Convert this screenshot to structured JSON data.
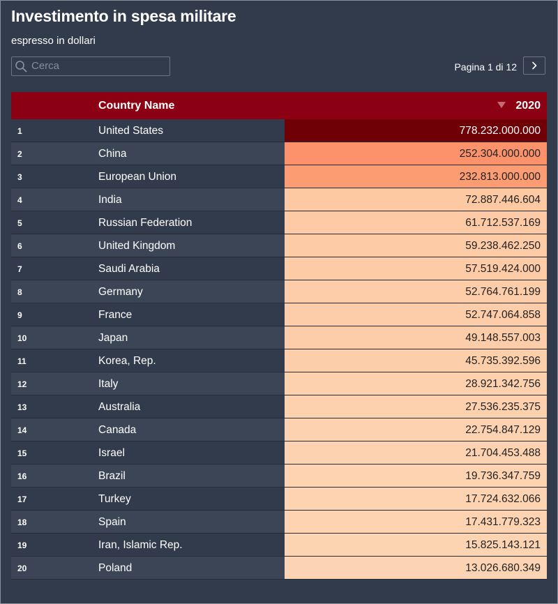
{
  "header": {
    "title": "Investimento in spesa militare",
    "subtitle": "espresso in dollari"
  },
  "search": {
    "placeholder": "Cerca",
    "value": ""
  },
  "pagination": {
    "label": "Pagina 1 di 12",
    "next_icon": "chevron-right-icon"
  },
  "table": {
    "columns": {
      "rank": "",
      "country": "Country Name",
      "value": "2020"
    },
    "sort_icon": "sort-desc-icon",
    "rows": [
      {
        "rank": "1",
        "country": "United States",
        "value": "778.232.000.000",
        "color": "#6e0006"
      },
      {
        "rank": "2",
        "country": "China",
        "value": "252.304.000.000",
        "color": "#fc926b"
      },
      {
        "rank": "3",
        "country": "European Union",
        "value": "232.813.000.000",
        "color": "#fc9c73"
      },
      {
        "rank": "4",
        "country": "India",
        "value": "72.887.446.604",
        "color": "#fdc9a2"
      },
      {
        "rank": "5",
        "country": "Russian Federation",
        "value": "61.712.537.169",
        "color": "#fdcaa5"
      },
      {
        "rank": "6",
        "country": "United Kingdom",
        "value": "59.238.462.250",
        "color": "#fdcba6"
      },
      {
        "rank": "7",
        "country": "Saudi Arabia",
        "value": "57.519.424.000",
        "color": "#fdcba6"
      },
      {
        "rank": "8",
        "country": "Germany",
        "value": "52.764.761.199",
        "color": "#fdcca8"
      },
      {
        "rank": "9",
        "country": "France",
        "value": "52.747.064.858",
        "color": "#fdcca8"
      },
      {
        "rank": "10",
        "country": "Japan",
        "value": "49.148.557.003",
        "color": "#fdcda9"
      },
      {
        "rank": "11",
        "country": "Korea, Rep.",
        "value": "45.735.392.596",
        "color": "#fdceaa"
      },
      {
        "rank": "12",
        "country": "Italy",
        "value": "28.921.342.756",
        "color": "#fdd1ae"
      },
      {
        "rank": "13",
        "country": "Australia",
        "value": "27.536.235.375",
        "color": "#fdd1ae"
      },
      {
        "rank": "14",
        "country": "Canada",
        "value": "22.754.847.129",
        "color": "#fdd2b0"
      },
      {
        "rank": "15",
        "country": "Israel",
        "value": "21.704.453.488",
        "color": "#fdd2b0"
      },
      {
        "rank": "16",
        "country": "Brazil",
        "value": "19.736.347.759",
        "color": "#fdd3b1"
      },
      {
        "rank": "17",
        "country": "Turkey",
        "value": "17.724.632.066",
        "color": "#fdd3b1"
      },
      {
        "rank": "18",
        "country": "Spain",
        "value": "17.431.779.323",
        "color": "#fdd3b2"
      },
      {
        "rank": "19",
        "country": "Iran, Islamic Rep.",
        "value": "15.825.143.121",
        "color": "#fdd4b2"
      },
      {
        "rank": "20",
        "country": "Poland",
        "value": "13.026.680.349",
        "color": "#fdd4b3"
      }
    ]
  }
}
